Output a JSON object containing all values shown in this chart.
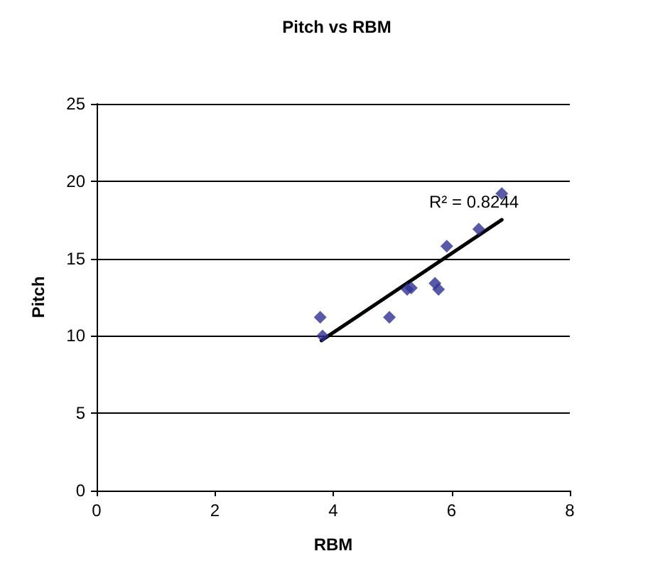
{
  "chart_data": {
    "type": "scatter",
    "title": "Pitch vs RBM",
    "xlabel": "RBM",
    "ylabel": "Pitch",
    "series": [
      {
        "color": "#2e3192",
        "marker": "diamond",
        "x": [
          3.78,
          3.82,
          4.95,
          5.25,
          5.32,
          5.72,
          5.78,
          5.92,
          6.46,
          6.85
        ],
        "values": [
          11.2,
          10.0,
          11.2,
          13.0,
          13.1,
          13.4,
          13.0,
          15.8,
          16.9,
          19.2
        ]
      },
      {
        "type": "line",
        "color": "#000000",
        "marker": "none",
        "x": [
          3.8,
          6.85
        ],
        "values": [
          9.7,
          17.5
        ]
      }
    ],
    "annotations": [
      "R² = 0.8244"
    ],
    "xlim": [
      0,
      8
    ],
    "xticks": [
      0,
      2,
      4,
      6,
      8
    ],
    "ylim": [
      0,
      25
    ],
    "yticks": [
      0,
      5,
      10,
      15,
      20,
      25
    ],
    "grid": "y"
  }
}
